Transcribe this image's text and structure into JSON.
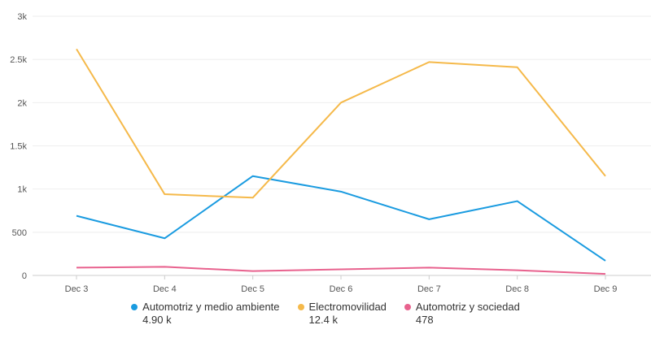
{
  "chart_data": {
    "type": "line",
    "title": "",
    "xlabel": "",
    "ylabel": "",
    "categories": [
      "Dec 3",
      "Dec 4",
      "Dec 5",
      "Dec 6",
      "Dec 7",
      "Dec 8",
      "Dec 9"
    ],
    "ylim": [
      0,
      3000
    ],
    "yticks": [
      0,
      500,
      1000,
      1500,
      2000,
      2500,
      3000
    ],
    "ytick_labels": [
      "0",
      "500",
      "1k",
      "1.5k",
      "2k",
      "2.5k",
      "3k"
    ],
    "grid": true,
    "legend_position": "bottom",
    "series": [
      {
        "name": "Automotriz y medio ambiente",
        "total": "4.90 k",
        "color": "#1a9be0",
        "values": [
          690,
          430,
          1150,
          970,
          650,
          860,
          170
        ]
      },
      {
        "name": "Electromovilidad",
        "total": "12.4 k",
        "color": "#f5b94a",
        "values": [
          2620,
          940,
          900,
          2000,
          2470,
          2410,
          1150
        ]
      },
      {
        "name": "Automotriz y sociedad",
        "total": "478",
        "color": "#e8628e",
        "values": [
          90,
          100,
          50,
          70,
          90,
          60,
          18
        ]
      }
    ]
  }
}
